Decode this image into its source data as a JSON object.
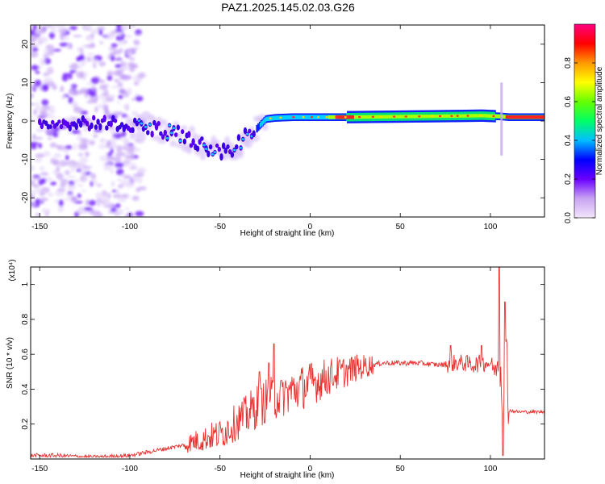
{
  "title": "PAZ1.2025.145.02.03.G26",
  "chart_data": [
    {
      "type": "heatmap",
      "xlabel": "Height of straight line (km)",
      "ylabel": "Frequency (Hz)",
      "xlim": [
        -155,
        130
      ],
      "ylim": [
        -25,
        25
      ],
      "xticks": [
        -150,
        -100,
        -50,
        0,
        50,
        100
      ],
      "yticks": [
        -20,
        -10,
        0,
        10,
        20
      ],
      "colorbar": {
        "label": "Normalized spectral amplitude",
        "range": [
          0,
          1
        ],
        "ticks": [
          0.0,
          0.2,
          0.4,
          0.6,
          0.8
        ],
        "colors": [
          "#f2e6fb",
          "#6a00ff",
          "#0000ff",
          "#00bfff",
          "#00ff66",
          "#66ff00",
          "#ffff00",
          "#ff9900",
          "#ff0000",
          "#ff0080"
        ]
      },
      "ridge": {
        "x": [
          -155,
          -140,
          -125,
          -110,
          -100,
          -90,
          -80,
          -70,
          -60,
          -50,
          -45,
          -40,
          -35,
          -30,
          -25,
          -20,
          -10,
          0,
          10,
          20,
          40,
          60,
          80,
          95,
          105,
          110,
          130
        ],
        "y": [
          -0.5,
          -0.5,
          -0.5,
          -0.5,
          -1,
          -1.5,
          -2.5,
          -4,
          -6.5,
          -7.5,
          -8,
          -6.5,
          -4,
          -2,
          0.5,
          0.8,
          1,
          1,
          1,
          1,
          1.1,
          1.2,
          1.3,
          1.4,
          1.2,
          1,
          1
        ]
      }
    },
    {
      "type": "line",
      "xlabel": "Height of straight line (km)",
      "ylabel": "SNR (10 * v/v)",
      "yunit": "(x10⁴)",
      "xlim": [
        -155,
        130
      ],
      "ylim": [
        0,
        1.1
      ],
      "xticks": [
        -150,
        -100,
        -50,
        0,
        50,
        100
      ],
      "yticks": [
        0.2,
        0.4,
        0.6,
        0.8,
        1.0
      ],
      "color": "#e8302e",
      "x": [
        -155,
        -140,
        -120,
        -100,
        -90,
        -80,
        -70,
        -65,
        -60,
        -55,
        -50,
        -45,
        -40,
        -35,
        -30,
        -25,
        -20,
        -15,
        -10,
        -5,
        0,
        5,
        10,
        15,
        20,
        25,
        30,
        35,
        40,
        50,
        60,
        70,
        75,
        80,
        85,
        90,
        95,
        100,
        103,
        105,
        107,
        109,
        110,
        115,
        120,
        130
      ],
      "y": [
        0.02,
        0.02,
        0.01,
        0.02,
        0.04,
        0.06,
        0.08,
        0.1,
        0.11,
        0.13,
        0.14,
        0.18,
        0.22,
        0.25,
        0.3,
        0.33,
        0.35,
        0.37,
        0.39,
        0.41,
        0.43,
        0.45,
        0.47,
        0.49,
        0.5,
        0.52,
        0.53,
        0.54,
        0.55,
        0.55,
        0.55,
        0.54,
        0.54,
        0.55,
        0.55,
        0.54,
        0.55,
        0.55,
        0.5,
        0.6,
        0.35,
        0.55,
        0.28,
        0.27,
        0.27,
        0.27
      ],
      "spikes": [
        {
          "x": -20,
          "y": 0.66
        },
        {
          "x": -28,
          "y": 0.5
        },
        {
          "x": -23,
          "y": 0.55
        },
        {
          "x": -16,
          "y": 0.45
        },
        {
          "x": 78,
          "y": 0.65
        },
        {
          "x": 95,
          "y": 0.65
        },
        {
          "x": 105,
          "y": 1.1
        },
        {
          "x": 108,
          "y": 0.9
        },
        {
          "x": 107,
          "y": 0.02
        }
      ]
    }
  ]
}
